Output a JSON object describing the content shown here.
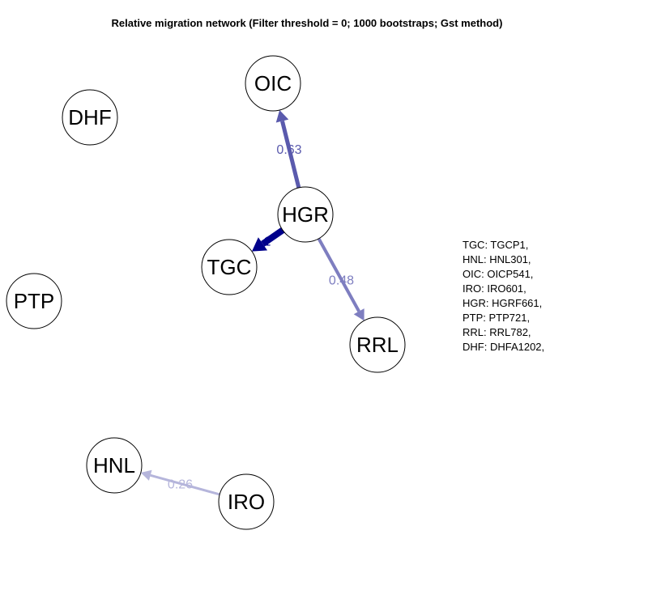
{
  "title": "Relative migration network (Filter threshold = 0; 1000 bootstraps; Gst method)",
  "nodes": [
    "OIC",
    "DHF",
    "HGR",
    "TGC",
    "PTP",
    "RRL",
    "HNL",
    "IRO"
  ],
  "edges": [
    {
      "from": "HGR",
      "to": "OIC",
      "weight": "0.63",
      "color": "#5a5aad"
    },
    {
      "from": "HGR",
      "to": "TGC",
      "weight": "1",
      "color": "#00008b"
    },
    {
      "from": "HGR",
      "to": "RRL",
      "weight": "0.48",
      "color": "#7e7ec0"
    },
    {
      "from": "IRO",
      "to": "HNL",
      "weight": "0.26",
      "color": "#b5b5db"
    }
  ],
  "legend": [
    "TGC: TGCP1,",
    "HNL: HNL301,",
    "OIC: OICP541,",
    "IRO: IRO601,",
    "HGR: HGRF661,",
    "PTP: PTP721,",
    "RRL: RRL782,",
    "DHF: DHFA1202,"
  ]
}
